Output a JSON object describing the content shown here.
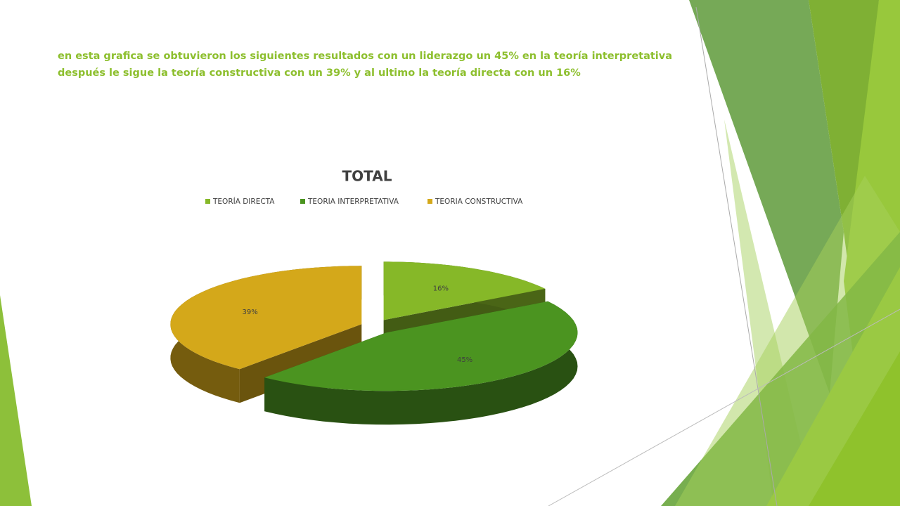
{
  "header": {
    "lines": [
      "en esta grafica se obtuvieron los siguientes resultados con un liderazgo un 45% en la teoría interpretativa",
      "después le sigue la teoría constructiva con un 39% y al ultimo la teoría directa con un 16%"
    ]
  },
  "chart_data": {
    "type": "pie",
    "title": "TOTAL",
    "categories": [
      "TEORÍA DIRECTA",
      "TEORIA INTERPRETATIVA",
      "TEORIA CONSTRUCTIVA"
    ],
    "values": [
      16,
      45,
      39
    ],
    "value_labels": [
      "16%",
      "45%",
      "39%"
    ],
    "colors": [
      "#86b828",
      "#4b9420",
      "#d4a81a"
    ],
    "legend": "top"
  }
}
